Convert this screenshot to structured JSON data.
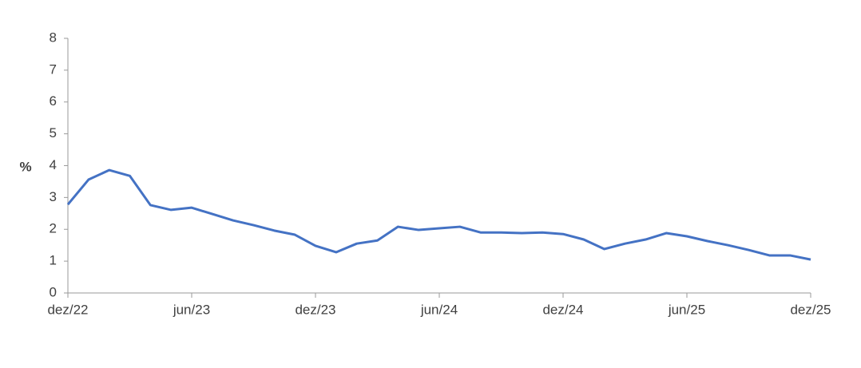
{
  "chart_data": {
    "type": "line",
    "y_label": "%",
    "categories": [
      "dez/22",
      null,
      null,
      null,
      null,
      null,
      "jun/23",
      null,
      null,
      null,
      null,
      null,
      "dez/23",
      null,
      null,
      null,
      null,
      null,
      "jun/24",
      null,
      null,
      null,
      null,
      null,
      "dez/24",
      null,
      null,
      null,
      null,
      null,
      "jun/25",
      null,
      null,
      null,
      null,
      null,
      "dez/25"
    ],
    "series": [
      {
        "color": "#4472c4",
        "values": [
          2.78,
          3.56,
          3.86,
          3.68,
          2.76,
          2.61,
          2.68,
          2.48,
          2.28,
          2.13,
          1.96,
          1.83,
          1.48,
          1.28,
          1.55,
          1.65,
          2.08,
          1.98,
          2.03,
          2.08,
          1.9,
          1.9,
          1.88,
          1.9,
          1.85,
          1.68,
          1.38,
          1.55,
          1.68,
          1.88,
          1.78,
          1.63,
          1.5,
          1.35,
          1.18,
          1.18,
          1.05
        ]
      }
    ],
    "ylim": [
      0,
      8
    ],
    "yticks": [
      0,
      1,
      2,
      3,
      4,
      5,
      6,
      7,
      8
    ],
    "grid": false
  }
}
